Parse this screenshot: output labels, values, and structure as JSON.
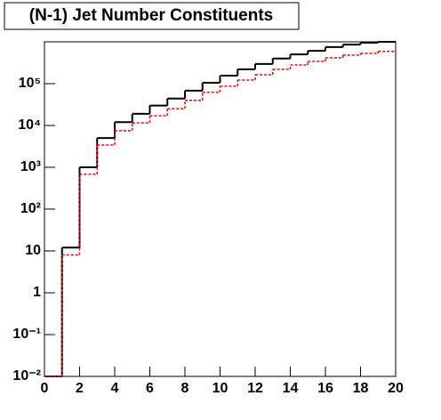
{
  "chart_data": {
    "type": "histogram",
    "title": "(N-1) Jet Number Constituents",
    "bins": [
      0,
      1,
      2,
      3,
      4,
      5,
      6,
      7,
      8,
      9,
      10,
      11,
      12,
      13,
      14,
      15,
      16,
      17,
      18,
      19,
      20
    ],
    "series": [
      {
        "color": "#000000",
        "values": [
          0,
          12,
          1000,
          5000,
          12000,
          19000,
          30000,
          44000,
          68000,
          105000,
          155000,
          220000,
          295000,
          400000,
          500000,
          610000,
          750000,
          860000,
          950000,
          1000000
        ]
      },
      {
        "color": "#ff0000",
        "values": [
          0,
          8,
          680,
          3400,
          7500,
          11500,
          17000,
          25000,
          40000,
          62000,
          87000,
          122000,
          163000,
          220000,
          280000,
          340000,
          415000,
          480000,
          530000,
          590000
        ]
      }
    ],
    "xlim": [
      0,
      20
    ],
    "xticks": [
      0,
      2,
      4,
      6,
      8,
      10,
      12,
      14,
      16,
      18,
      20
    ],
    "ylim": [
      0.01,
      1000000
    ],
    "log_y": true,
    "yticks": [
      {
        "value": 0.01,
        "label": "10⁻²"
      },
      {
        "value": 0.1,
        "label": "10⁻¹"
      },
      1,
      10,
      {
        "value": 100,
        "label": "10²"
      },
      {
        "value": 1000,
        "label": "10³"
      },
      {
        "value": 10000,
        "label": "10⁴"
      },
      {
        "value": 100000,
        "label": "10⁵"
      }
    ]
  }
}
